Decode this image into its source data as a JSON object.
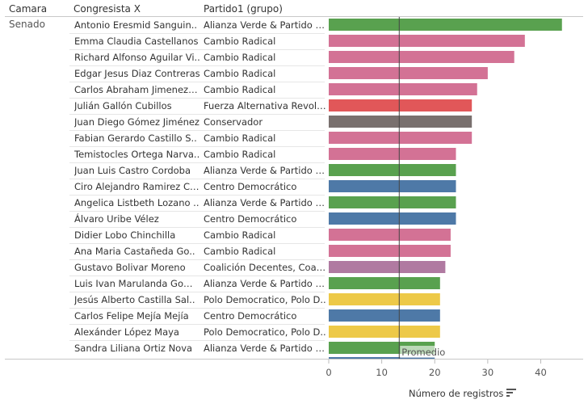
{
  "headers": {
    "camara": "Camara",
    "congresista": "Congresista X",
    "partido": "Partido1 (grupo)"
  },
  "camara_value": "Senado",
  "colors": {
    "Alianza Verde": "#59a14f",
    "Cambio Radical": "#d37295",
    "Fuerza Alternativa": "#e15759",
    "Conservador": "#79706e",
    "Centro Democratico": "#4e79a7",
    "Coalicion Decentes": "#b07aa1",
    "Polo Democratico": "#edc948"
  },
  "chart_data": {
    "type": "bar",
    "orientation": "horizontal",
    "xlabel": "Número de registros",
    "xticks": [
      0,
      10,
      20,
      30,
      40
    ],
    "xlim": [
      0,
      48
    ],
    "reference_line": {
      "label": "Promedio",
      "value": 13.3
    },
    "rows": [
      {
        "name": "Antonio Eresmid Sanguin..",
        "party": "Alianza Verde & Partido Al..",
        "value": 44,
        "color": "#59a14f"
      },
      {
        "name": "Emma Claudia Castellanos",
        "party": "Cambio Radical",
        "value": 37,
        "color": "#d37295"
      },
      {
        "name": "Richard Alfonso Aguilar Vi..",
        "party": "Cambio Radical",
        "value": 35,
        "color": "#d37295"
      },
      {
        "name": "Edgar Jesus Diaz Contreras",
        "party": "Cambio Radical",
        "value": 30,
        "color": "#d37295"
      },
      {
        "name": "Carlos Abraham Jimenez L..",
        "party": "Cambio Radical",
        "value": 28,
        "color": "#d37295"
      },
      {
        "name": "Julián Gallón Cubillos",
        "party": "Fuerza Alternativa Revolu..",
        "value": 27,
        "color": "#e15759"
      },
      {
        "name": "Juan Diego Gómez Jiménez",
        "party": "Conservador",
        "value": 27,
        "color": "#79706e"
      },
      {
        "name": "Fabian Gerardo Castillo S..",
        "party": "Cambio Radical",
        "value": 27,
        "color": "#d37295"
      },
      {
        "name": "Temistocles Ortega Narva..",
        "party": "Cambio Radical",
        "value": 24,
        "color": "#d37295"
      },
      {
        "name": "Juan Luis Castro Cordoba",
        "party": "Alianza Verde & Partido Al..",
        "value": 24,
        "color": "#59a14f"
      },
      {
        "name": "Ciro Alejandro Ramirez Co..",
        "party": "Centro Democrático",
        "value": 24,
        "color": "#4e79a7"
      },
      {
        "name": "Angelica Listbeth Lozano ..",
        "party": "Alianza Verde & Partido Al..",
        "value": 24,
        "color": "#59a14f"
      },
      {
        "name": "Álvaro Uribe Vélez",
        "party": "Centro Democrático",
        "value": 24,
        "color": "#4e79a7"
      },
      {
        "name": "Didier Lobo Chinchilla",
        "party": "Cambio Radical",
        "value": 23,
        "color": "#d37295"
      },
      {
        "name": "Ana Maria Castañeda Go..",
        "party": "Cambio Radical",
        "value": 23,
        "color": "#d37295"
      },
      {
        "name": "Gustavo Bolivar Moreno",
        "party": "Coalición Decentes, Coalic..",
        "value": 22,
        "color": "#b07aa1"
      },
      {
        "name": "Luis Ivan Marulanda Gomez",
        "party": "Alianza Verde & Partido Al..",
        "value": 21,
        "color": "#59a14f"
      },
      {
        "name": "Jesús Alberto Castilla Sal..",
        "party": "Polo Democratico, Polo D..",
        "value": 21,
        "color": "#edc948"
      },
      {
        "name": "Carlos  Felipe Mejía Mejía",
        "party": "Centro Democrático",
        "value": 21,
        "color": "#4e79a7"
      },
      {
        "name": "Alexánder López Maya",
        "party": "Polo Democratico, Polo D..",
        "value": 21,
        "color": "#edc948"
      },
      {
        "name": "Sandra Liliana Ortiz Nova",
        "party": "Alianza Verde & Partido Al..",
        "value": 20,
        "color": "#59a14f"
      }
    ]
  }
}
